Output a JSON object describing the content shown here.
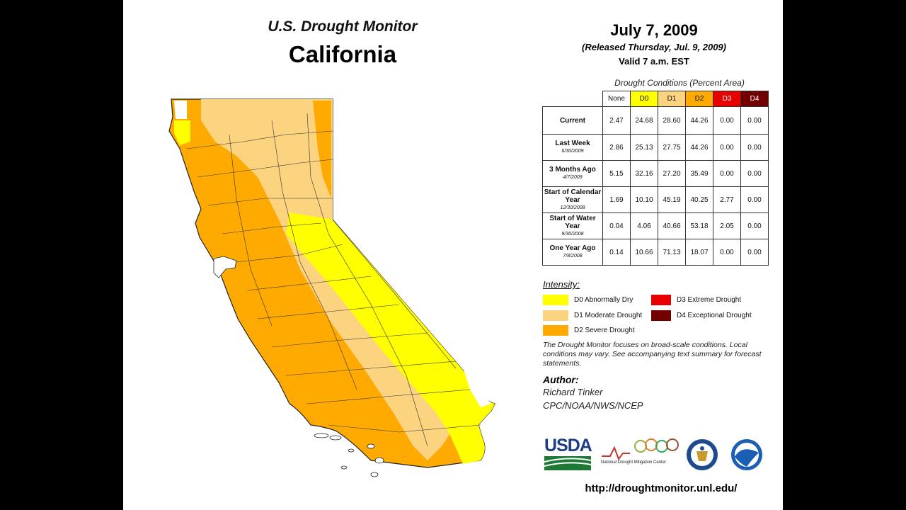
{
  "header": {
    "monitor_title": "U.S. Drought Monitor",
    "state": "California",
    "date": "July 7, 2009",
    "released": "(Released Thursday, Jul. 9, 2009)",
    "valid": "Valid 7 a.m. EST"
  },
  "table": {
    "caption": "Drought Conditions (Percent Area)",
    "columns": [
      {
        "label": "None",
        "color": "#ffffff"
      },
      {
        "label": "D0",
        "color": "#ffff00"
      },
      {
        "label": "D1",
        "color": "#fcd37f"
      },
      {
        "label": "D2",
        "color": "#ffaa00"
      },
      {
        "label": "D3",
        "color": "#e60000"
      },
      {
        "label": "D4",
        "color": "#730000"
      }
    ],
    "rows": [
      {
        "label": "Current",
        "sub": "",
        "values": [
          "2.47",
          "24.68",
          "28.60",
          "44.26",
          "0.00",
          "0.00"
        ]
      },
      {
        "label": "Last Week",
        "sub": "6/30/2009",
        "values": [
          "2.86",
          "25.13",
          "27.75",
          "44.26",
          "0.00",
          "0.00"
        ]
      },
      {
        "label": "3 Months Ago",
        "sub": "4/7/2009",
        "values": [
          "5.15",
          "32.16",
          "27.20",
          "35.49",
          "0.00",
          "0.00"
        ]
      },
      {
        "label": "Start of Calendar Year",
        "sub": "12/30/2008",
        "values": [
          "1.69",
          "10.10",
          "45.19",
          "40.25",
          "2.77",
          "0.00"
        ]
      },
      {
        "label": "Start of Water Year",
        "sub": "9/30/2008",
        "values": [
          "0.04",
          "4.06",
          "40.66",
          "53.18",
          "2.05",
          "0.00"
        ]
      },
      {
        "label": "One Year Ago",
        "sub": "7/8/2008",
        "values": [
          "0.14",
          "10.66",
          "71.13",
          "18.07",
          "0.00",
          "0.00"
        ]
      }
    ]
  },
  "legend": {
    "title": "Intensity:",
    "items": [
      {
        "label": "D0 Abnormally Dry",
        "color": "#ffff00"
      },
      {
        "label": "D1 Moderate Drought",
        "color": "#fcd37f"
      },
      {
        "label": "D2 Severe Drought",
        "color": "#ffaa00"
      },
      {
        "label": "D3 Extreme Drought",
        "color": "#e60000"
      },
      {
        "label": "D4 Exceptional Drought",
        "color": "#730000"
      }
    ]
  },
  "note": "The Drought Monitor focuses on broad-scale conditions. Local conditions may vary. See accompanying text summary for forecast statements.",
  "author": {
    "label": "Author:",
    "name": "Richard Tinker",
    "org": "CPC/NOAA/NWS/NCEP"
  },
  "logos": {
    "usda": "USDA",
    "ndmc": "National Drought Mitigation Center"
  },
  "url": "http://droughtmonitor.unl.edu/",
  "colors": {
    "none": "#ffffff",
    "d0": "#ffff00",
    "d1": "#fcd37f",
    "d2": "#ffaa00",
    "d3": "#e60000",
    "d4": "#730000"
  }
}
